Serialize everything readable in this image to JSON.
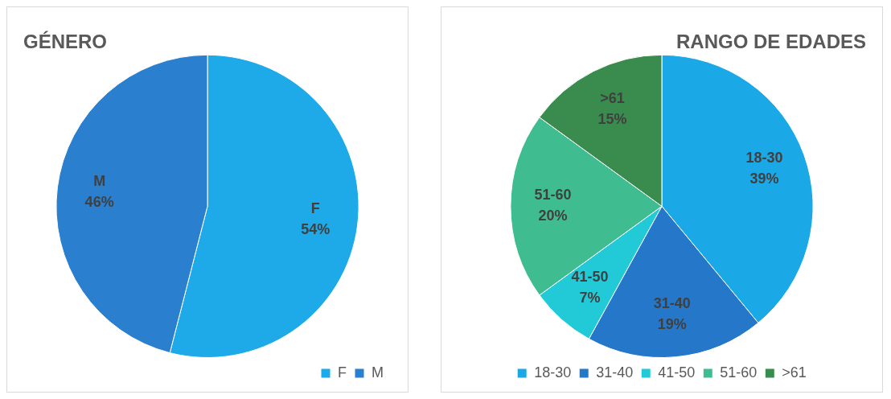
{
  "chart_data": [
    {
      "type": "pie",
      "title": "GÉNERO",
      "categories": [
        "F",
        "M"
      ],
      "values": [
        54,
        46
      ],
      "value_labels": [
        "54%",
        "46%"
      ],
      "colors": [
        "#1eaae8",
        "#2a7fcf"
      ],
      "legend": "bottom right"
    },
    {
      "type": "pie",
      "title": "RANGO DE EDADES",
      "categories": [
        "18-30",
        "31-40",
        "41-50",
        "51-60",
        ">61"
      ],
      "values": [
        39,
        19,
        7,
        20,
        15
      ],
      "value_labels": [
        "39%",
        "19%",
        "7%",
        "20%",
        "15%"
      ],
      "colors": [
        "#1aa8e6",
        "#2477c9",
        "#22cad8",
        "#40bd90",
        "#3a8c4e"
      ],
      "legend": "bottom"
    }
  ]
}
